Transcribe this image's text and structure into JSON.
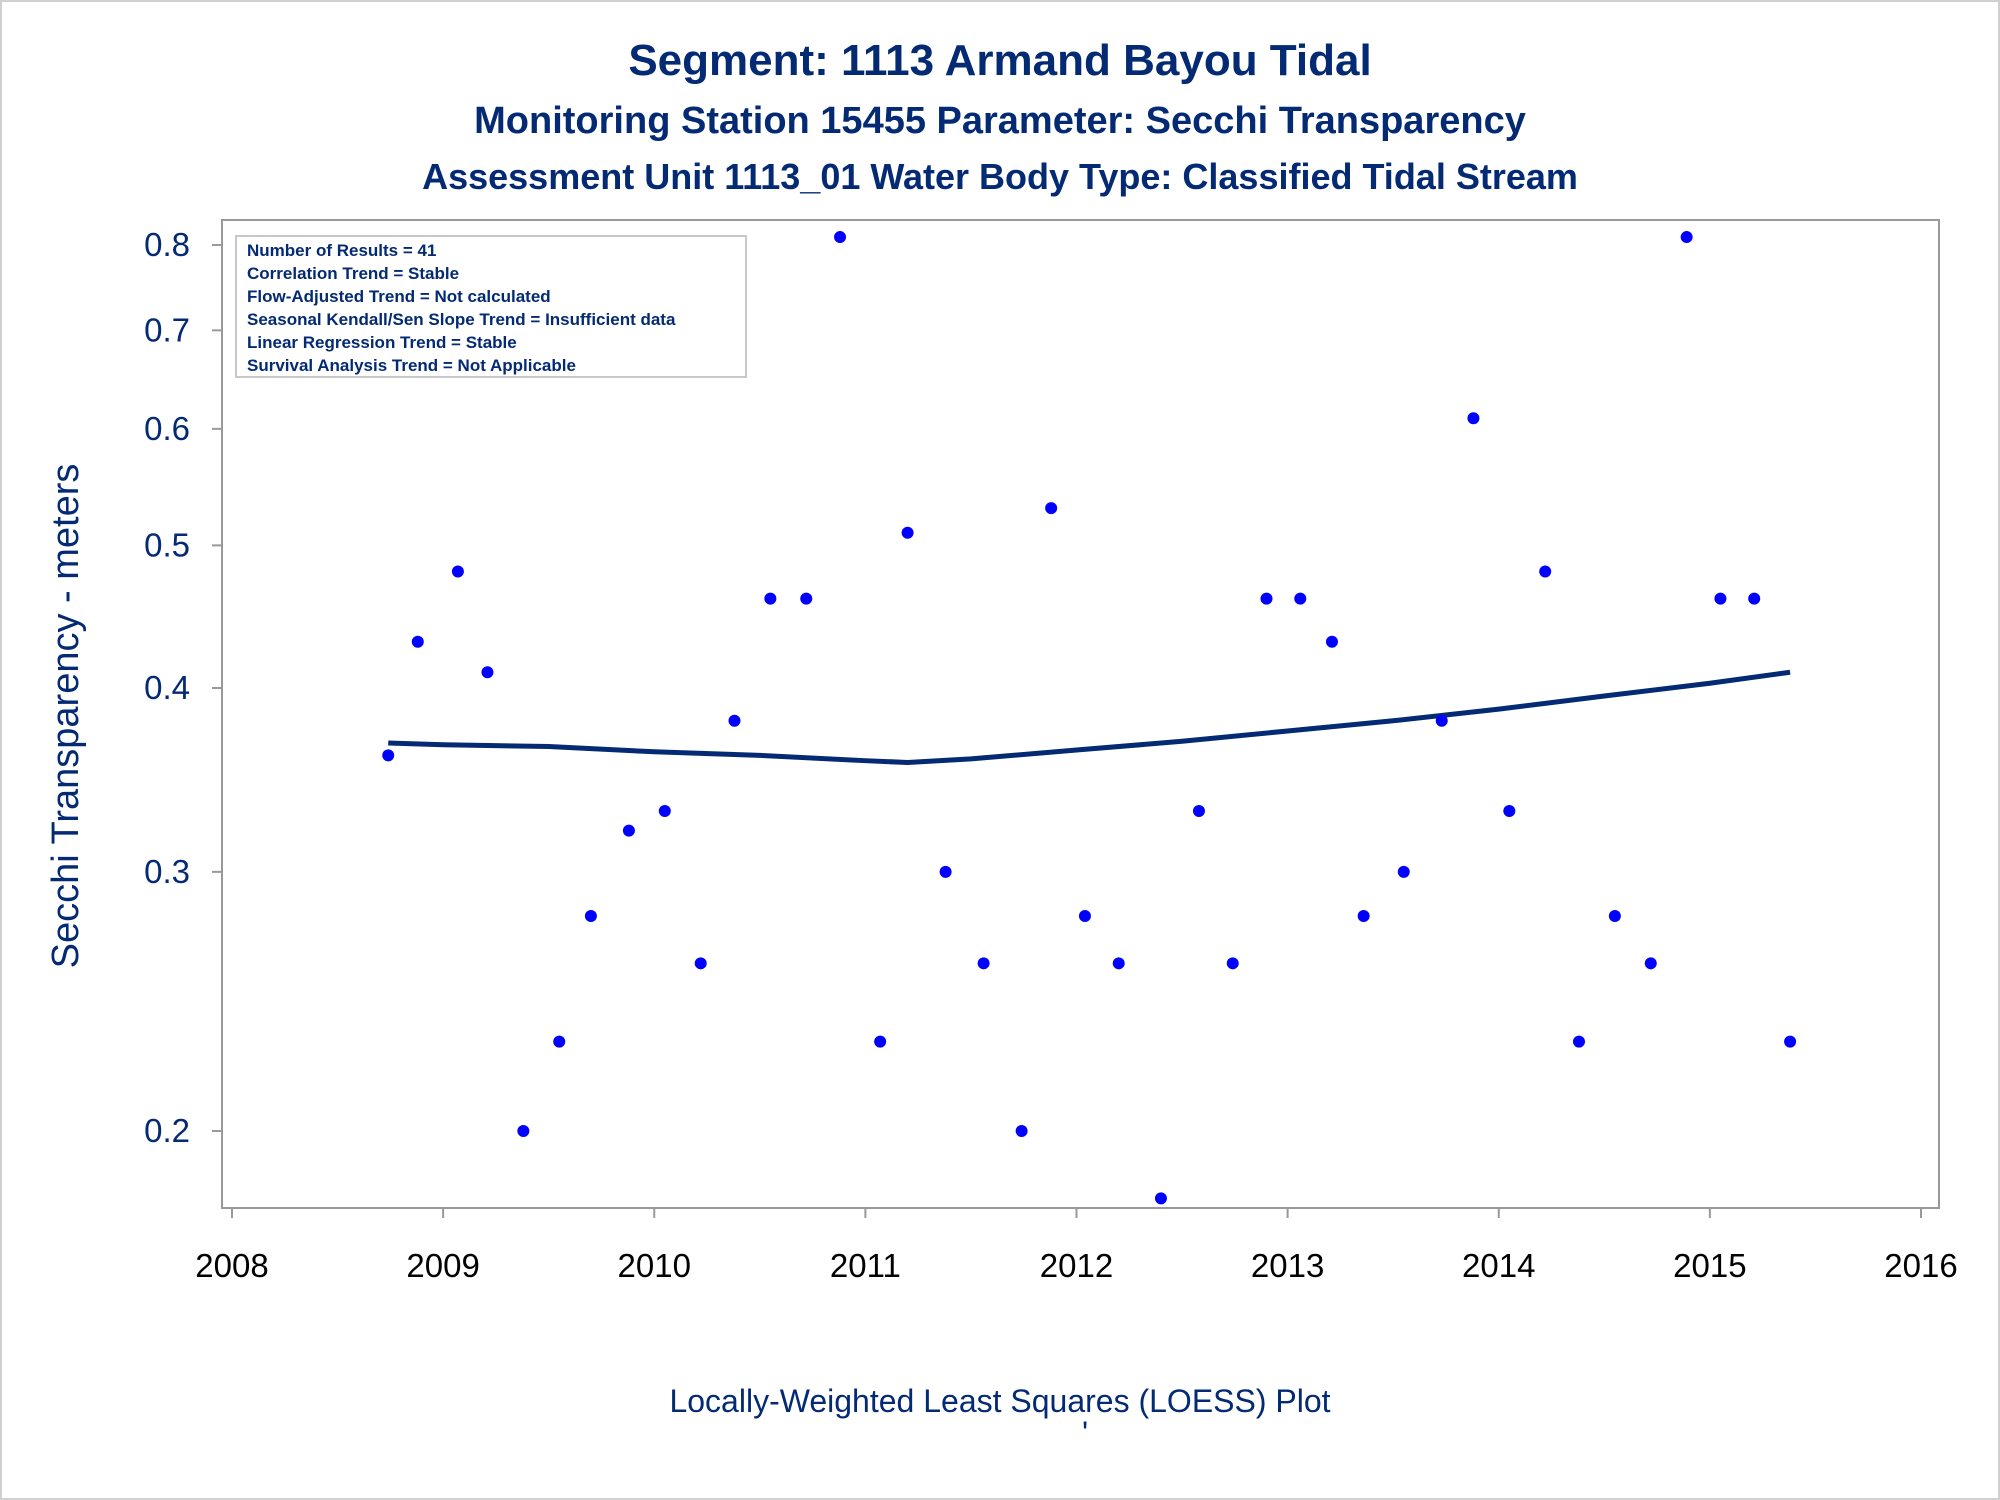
{
  "titles": {
    "line1": "Segment: 1113  Armand Bayou Tidal",
    "line2": "Monitoring Station 15455 Parameter: Secchi Transparency",
    "line3": "Assessment Unit 1113_01   Water Body Type: Classified Tidal Stream"
  },
  "inset_box": [
    "Number of Results = 41",
    "Correlation Trend = Stable",
    "Flow-Adjusted Trend = Not calculated",
    "Seasonal Kendall/Sen Slope Trend = Insufficient data",
    "Linear Regression Trend = Stable",
    "Survival Analysis Trend = Not Applicable"
  ],
  "footnote": "Locally-Weighted Least Squares (LOESS) Plot",
  "footnote_mark": "'",
  "colors": {
    "title": "#032a73",
    "axis_text": "#032a73",
    "points": "#0000ff",
    "loess_line": "#032a73",
    "frame": "#999999"
  },
  "chart_data": {
    "type": "scatter",
    "ylabel": "Secchi Transparency - meters",
    "xlabel": "",
    "yscale": "log",
    "xlim": [
      2008,
      2016
    ],
    "ylim": [
      0.18,
      0.82
    ],
    "xticks": [
      "2008",
      "2009",
      "2010",
      "2011",
      "2012",
      "2013",
      "2014",
      "2015",
      "2016"
    ],
    "yticks": [
      "0.2",
      "0.3",
      "0.4",
      "0.5",
      "0.6",
      "0.7",
      "0.8"
    ],
    "grid": false,
    "points": [
      {
        "x": 2008.74,
        "y": 0.36
      },
      {
        "x": 2008.88,
        "y": 0.43
      },
      {
        "x": 2009.07,
        "y": 0.48
      },
      {
        "x": 2009.21,
        "y": 0.41
      },
      {
        "x": 2009.38,
        "y": 0.2
      },
      {
        "x": 2009.55,
        "y": 0.23
      },
      {
        "x": 2009.7,
        "y": 0.28
      },
      {
        "x": 2009.88,
        "y": 0.32
      },
      {
        "x": 2010.05,
        "y": 0.33
      },
      {
        "x": 2010.22,
        "y": 0.26
      },
      {
        "x": 2010.38,
        "y": 0.38
      },
      {
        "x": 2010.55,
        "y": 0.46
      },
      {
        "x": 2010.72,
        "y": 0.46
      },
      {
        "x": 2010.88,
        "y": 0.81
      },
      {
        "x": 2011.07,
        "y": 0.23
      },
      {
        "x": 2011.2,
        "y": 0.51
      },
      {
        "x": 2011.38,
        "y": 0.3
      },
      {
        "x": 2011.56,
        "y": 0.26
      },
      {
        "x": 2011.74,
        "y": 0.2
      },
      {
        "x": 2011.88,
        "y": 0.53
      },
      {
        "x": 2012.04,
        "y": 0.28
      },
      {
        "x": 2012.2,
        "y": 0.26
      },
      {
        "x": 2012.4,
        "y": 0.18
      },
      {
        "x": 2012.58,
        "y": 0.33
      },
      {
        "x": 2012.74,
        "y": 0.26
      },
      {
        "x": 2012.9,
        "y": 0.46
      },
      {
        "x": 2013.06,
        "y": 0.46
      },
      {
        "x": 2013.21,
        "y": 0.43
      },
      {
        "x": 2013.36,
        "y": 0.28
      },
      {
        "x": 2013.55,
        "y": 0.3
      },
      {
        "x": 2013.73,
        "y": 0.38
      },
      {
        "x": 2013.88,
        "y": 0.61
      },
      {
        "x": 2014.05,
        "y": 0.33
      },
      {
        "x": 2014.22,
        "y": 0.48
      },
      {
        "x": 2014.38,
        "y": 0.23
      },
      {
        "x": 2014.55,
        "y": 0.28
      },
      {
        "x": 2014.72,
        "y": 0.26
      },
      {
        "x": 2014.89,
        "y": 0.81
      },
      {
        "x": 2015.05,
        "y": 0.46
      },
      {
        "x": 2015.21,
        "y": 0.46
      },
      {
        "x": 2015.38,
        "y": 0.23
      }
    ],
    "loess": [
      {
        "x": 2008.74,
        "y": 0.367
      },
      {
        "x": 2009.0,
        "y": 0.366
      },
      {
        "x": 2009.5,
        "y": 0.365
      },
      {
        "x": 2010.0,
        "y": 0.362
      },
      {
        "x": 2010.5,
        "y": 0.36
      },
      {
        "x": 2011.0,
        "y": 0.357
      },
      {
        "x": 2011.2,
        "y": 0.356
      },
      {
        "x": 2011.5,
        "y": 0.358
      },
      {
        "x": 2012.0,
        "y": 0.363
      },
      {
        "x": 2012.5,
        "y": 0.368
      },
      {
        "x": 2013.0,
        "y": 0.374
      },
      {
        "x": 2013.5,
        "y": 0.38
      },
      {
        "x": 2014.0,
        "y": 0.387
      },
      {
        "x": 2014.5,
        "y": 0.395
      },
      {
        "x": 2015.0,
        "y": 0.403
      },
      {
        "x": 2015.38,
        "y": 0.41
      }
    ]
  }
}
